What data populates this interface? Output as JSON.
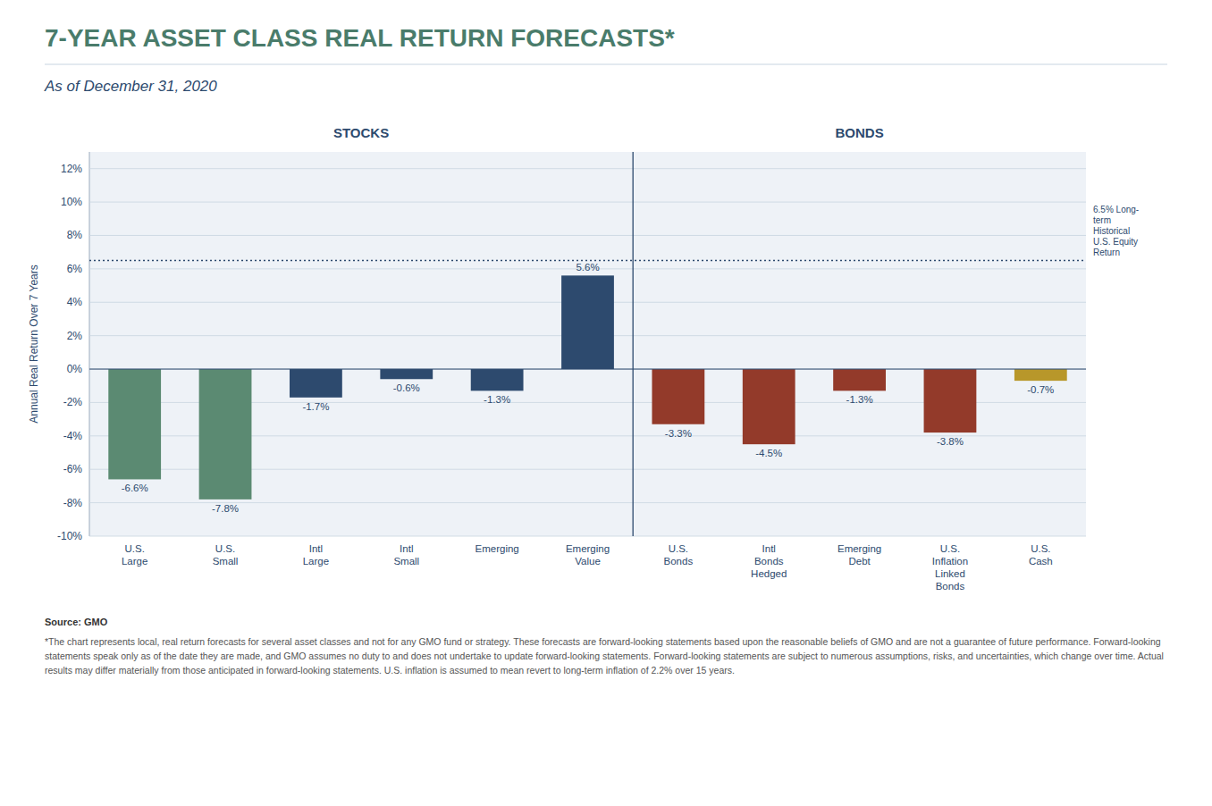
{
  "chart_data": {
    "type": "bar",
    "title": "7-YEAR ASSET CLASS REAL RETURN FORECASTS*",
    "subtitle": "As of December 31, 2020",
    "categories": [
      "U.S.\nLarge",
      "U.S.\nSmall",
      "Intl\nLarge",
      "Intl\nSmall",
      "Emerging",
      "Emerging\nValue",
      "U.S.\nBonds",
      "Intl\nBonds\nHedged",
      "Emerging\nDebt",
      "U.S.\nInflation\nLinked\nBonds",
      "U.S.\nCash"
    ],
    "values": [
      -6.6,
      -7.8,
      -1.7,
      -0.6,
      -1.3,
      5.6,
      -3.3,
      -4.5,
      -1.3,
      -3.8,
      -0.7
    ],
    "value_labels": [
      "-6.6%",
      "-7.8%",
      "-1.7%",
      "-0.6%",
      "-1.3%",
      "5.6%",
      "-3.3%",
      "-4.5%",
      "-1.3%",
      "-3.8%",
      "-0.7%"
    ],
    "colors": [
      "#5b8a72",
      "#5b8a72",
      "#2d4a6e",
      "#2d4a6e",
      "#2d4a6e",
      "#2d4a6e",
      "#933a2a",
      "#933a2a",
      "#933a2a",
      "#933a2a",
      "#b8972a"
    ],
    "data_labels": true,
    "sections": [
      {
        "label": "STOCKS",
        "from": 0,
        "to": 6
      },
      {
        "label": "BONDS",
        "from": 6,
        "to": 11
      }
    ],
    "reference_line": {
      "value": 6.5,
      "label": "6.5% Long-\nterm\nHistorical\nU.S. Equity\nReturn"
    },
    "ylim": [
      -10,
      13
    ],
    "yticks": [
      {
        "value": -10,
        "label": "-10%"
      },
      {
        "value": -8,
        "label": "-8%"
      },
      {
        "value": -6,
        "label": "-6%"
      },
      {
        "value": -4,
        "label": "-4%"
      },
      {
        "value": -2,
        "label": "-2%"
      },
      {
        "value": 0,
        "label": "0%"
      },
      {
        "value": 2,
        "label": "2%"
      },
      {
        "value": 4,
        "label": "4%"
      },
      {
        "value": 6,
        "label": "6%"
      },
      {
        "value": 8,
        "label": "8%"
      },
      {
        "value": 10,
        "label": "10%"
      },
      {
        "value": 12,
        "label": "12%"
      }
    ],
    "ylabel": "Annual Real Return Over 7 Years",
    "grid": true,
    "source": "Source: GMO",
    "footnote": "*The chart represents local, real return forecasts for several asset classes and not for any GMO fund or strategy. These forecasts are forward-looking statements based upon the reasonable beliefs of GMO and are not a guarantee of future performance. Forward-looking statements speak only as of the date they are made, and GMO assumes no duty to and does not undertake to update forward-looking statements. Forward-looking statements are subject to numerous assumptions, risks, and uncertainties, which change over time. Actual results may differ materially from those anticipated in forward-looking statements. U.S. inflation is assumed to mean revert to long-term inflation of 2.2% over 15 years."
  }
}
